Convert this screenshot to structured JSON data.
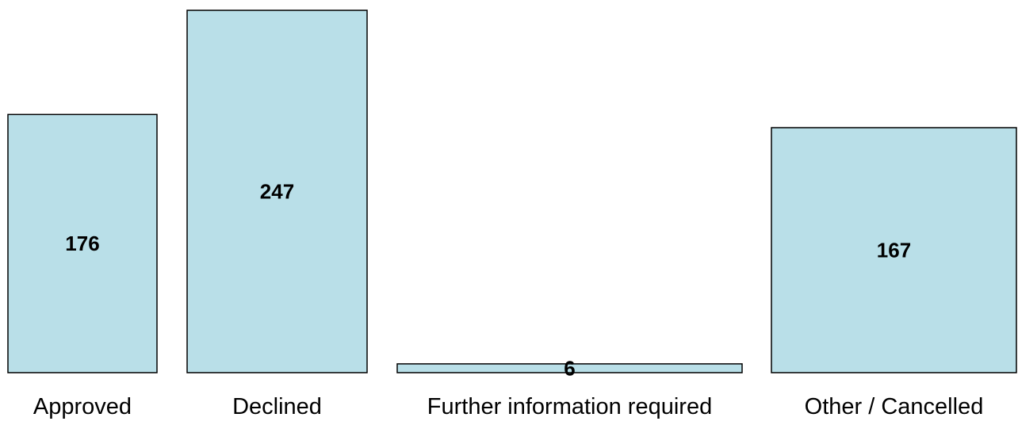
{
  "chart_data": {
    "type": "bar",
    "title": "",
    "xlabel": "",
    "ylabel": "",
    "categories": [
      "Approved",
      "Declined",
      "Further information required",
      "Other / Cancelled"
    ],
    "values": [
      176,
      247,
      6,
      167
    ],
    "data_labels": [
      "176",
      "247",
      "6",
      "167"
    ],
    "ylim": [
      0,
      247
    ],
    "grid": false,
    "legend": "none",
    "bar_color": "#b9dfe8",
    "bar_outline_color": "#000000"
  }
}
